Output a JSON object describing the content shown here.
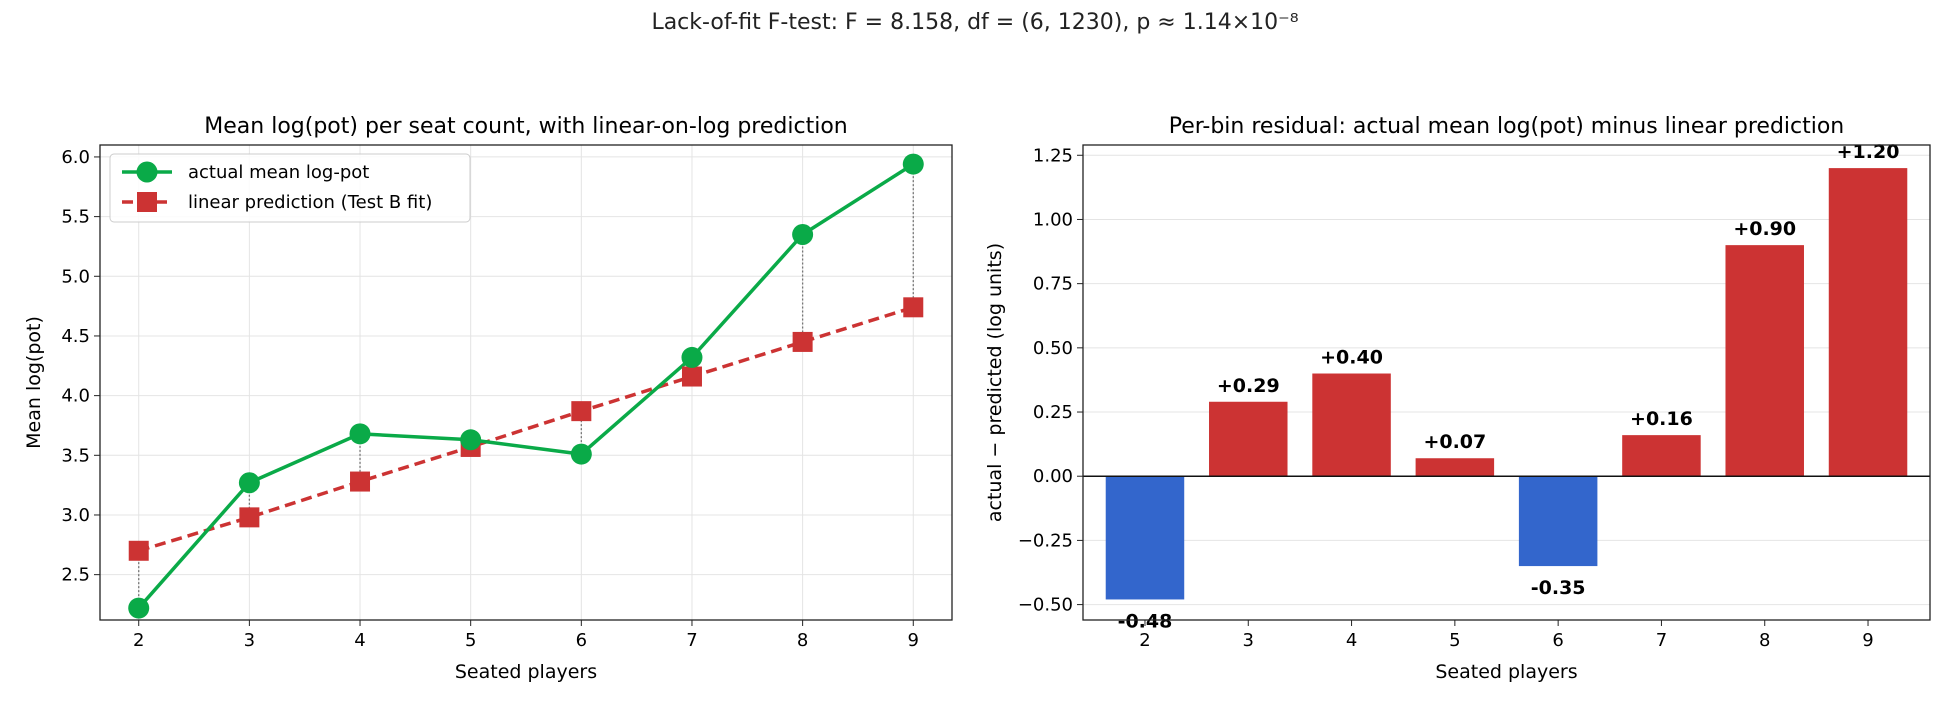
{
  "suptitle": "Lack-of-fit F-test: F = 8.158, df = (6, 1230), p ≈ 1.14×10⁻⁸",
  "colors": {
    "actual": "#0aaa48",
    "prediction": "#cc3333",
    "positive": "#cc3333",
    "negative": "#3366cc",
    "grid": "#e4e4e4",
    "connector": "#777777"
  },
  "chart_data": [
    {
      "type": "line",
      "title": "Mean log(pot) per seat count, with linear-on-log prediction",
      "xlabel": "Seated players",
      "ylabel": "Mean log(pot)",
      "x": [
        2,
        3,
        4,
        5,
        6,
        7,
        8,
        9
      ],
      "xlim": [
        1.65,
        9.35
      ],
      "ylim": [
        2.12,
        6.1
      ],
      "xticks": [
        "2",
        "3",
        "4",
        "5",
        "6",
        "7",
        "8",
        "9"
      ],
      "yticks": [
        "2.5",
        "3.0",
        "3.5",
        "4.0",
        "4.5",
        "5.0",
        "5.5",
        "6.0"
      ],
      "grid": true,
      "legend_position": "upper-left",
      "series": [
        {
          "name": "actual mean log-pot",
          "style": "solid",
          "marker": "circle",
          "values": [
            2.22,
            3.27,
            3.68,
            3.63,
            3.51,
            4.32,
            5.35,
            5.94
          ]
        },
        {
          "name": "linear prediction (Test B fit)",
          "style": "dashed",
          "marker": "square",
          "values": [
            2.7,
            2.98,
            3.28,
            3.57,
            3.87,
            4.16,
            4.45,
            4.74
          ]
        }
      ]
    },
    {
      "type": "bar",
      "title": "Per-bin residual: actual mean log(pot) minus linear prediction",
      "xlabel": "Seated players",
      "ylabel": "actual − predicted (log units)",
      "categories": [
        "2",
        "3",
        "4",
        "5",
        "6",
        "7",
        "8",
        "9"
      ],
      "values": [
        -0.48,
        0.29,
        0.4,
        0.07,
        -0.35,
        0.16,
        0.9,
        1.2
      ],
      "data_labels": [
        "-0.48",
        "+0.29",
        "+0.40",
        "+0.07",
        "-0.35",
        "+0.16",
        "+0.90",
        "+1.20"
      ],
      "ylim": [
        -0.56,
        1.29
      ],
      "yticks": [
        "−0.50",
        "−0.25",
        "0.00",
        "0.25",
        "0.50",
        "0.75",
        "1.00",
        "1.25"
      ],
      "grid": true
    }
  ]
}
